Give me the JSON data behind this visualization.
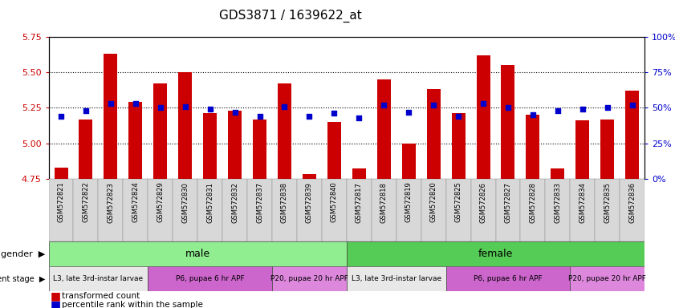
{
  "title": "GDS3871 / 1639622_at",
  "samples": [
    "GSM572821",
    "GSM572822",
    "GSM572823",
    "GSM572824",
    "GSM572829",
    "GSM572830",
    "GSM572831",
    "GSM572832",
    "GSM572837",
    "GSM572838",
    "GSM572839",
    "GSM572840",
    "GSM572817",
    "GSM572818",
    "GSM572819",
    "GSM572820",
    "GSM572825",
    "GSM572826",
    "GSM572827",
    "GSM572828",
    "GSM572833",
    "GSM572834",
    "GSM572835",
    "GSM572836"
  ],
  "transformed_count": [
    4.83,
    5.17,
    5.63,
    5.29,
    5.42,
    5.5,
    5.21,
    5.23,
    5.17,
    5.42,
    4.78,
    5.15,
    4.82,
    5.45,
    5.0,
    5.38,
    5.21,
    5.62,
    5.55,
    5.2,
    4.82,
    5.16,
    5.17,
    5.37
  ],
  "percentile_rank": [
    44,
    48,
    53,
    53,
    50,
    51,
    49,
    47,
    44,
    51,
    44,
    46,
    43,
    52,
    47,
    52,
    44,
    53,
    50,
    45,
    48,
    49,
    50,
    52
  ],
  "gender_groups": [
    {
      "label": "male",
      "start": 0,
      "end": 12,
      "color": "#90EE90"
    },
    {
      "label": "female",
      "start": 12,
      "end": 24,
      "color": "#55CC55"
    }
  ],
  "dev_stage_groups": [
    {
      "label": "L3, late 3rd-instar larvae",
      "start": 0,
      "end": 4,
      "color": "#E8E8E8"
    },
    {
      "label": "P6, pupae 6 hr APF",
      "start": 4,
      "end": 9,
      "color": "#CC66CC"
    },
    {
      "label": "P20, pupae 20 hr APF",
      "start": 9,
      "end": 12,
      "color": "#DD88DD"
    },
    {
      "label": "L3, late 3rd-instar larvae",
      "start": 12,
      "end": 16,
      "color": "#E8E8E8"
    },
    {
      "label": "P6, pupae 6 hr APF",
      "start": 16,
      "end": 21,
      "color": "#CC66CC"
    },
    {
      "label": "P20, pupae 20 hr APF",
      "start": 21,
      "end": 24,
      "color": "#DD88DD"
    }
  ],
  "ylim_left": [
    4.75,
    5.75
  ],
  "ylim_right": [
    0,
    100
  ],
  "yticks_left": [
    4.75,
    5.0,
    5.25,
    5.5,
    5.75
  ],
  "yticks_right": [
    0,
    25,
    50,
    75,
    100
  ],
  "bar_color": "#CC0000",
  "marker_color": "#0000CC",
  "background_color": "#FFFFFF",
  "grid_lines": [
    5.0,
    5.25,
    5.5
  ]
}
